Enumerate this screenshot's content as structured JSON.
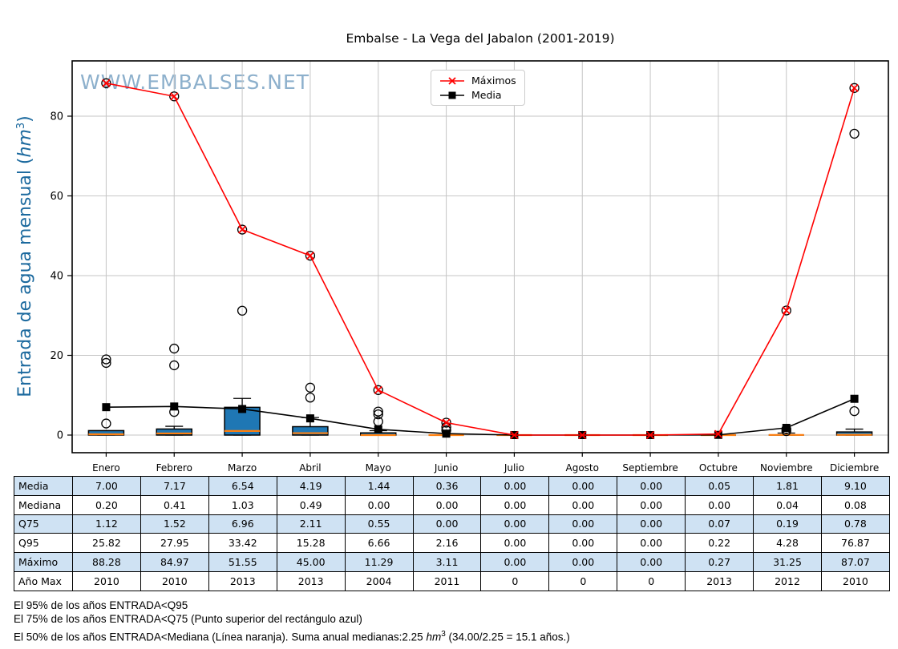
{
  "watermark": "WWW.EMBALSES.NET",
  "colors": {
    "watermark": "#7aa3c4",
    "ylabel": "#1b699e",
    "box_fill": "#1f77b4",
    "box_edge": "#000000",
    "median_line": "#ff7f0e",
    "maximos_line": "#ff0000",
    "media_line": "#000000",
    "grid": "#c6c6c6",
    "table_alt_row": "#cfe2f3",
    "legend_border": "#cccccc"
  },
  "y_axis_label": {
    "prefix": "Entrada de agua mensual (",
    "italic": "hm",
    "sup": "3",
    "suffix": ")"
  },
  "chart_data": {
    "type": "boxplot-with-lines",
    "title": "Embalse - La Vega del Jabalon (2001-2019)",
    "ylabel": "Entrada de agua mensual (hm3)",
    "categories": [
      "Enero",
      "Febrero",
      "Marzo",
      "Abril",
      "Mayo",
      "Junio",
      "Julio",
      "Agosto",
      "Septiembre",
      "Octubre",
      "Noviembre",
      "Diciembre"
    ],
    "yticks": [
      0,
      20,
      40,
      60,
      80
    ],
    "ylim": [
      -4.4,
      93.9
    ],
    "grid": true,
    "legend_position": "top-center",
    "series": [
      {
        "name": "Máximos",
        "type": "line",
        "color": "#ff0000",
        "marker": "x",
        "values": [
          88.28,
          84.97,
          51.55,
          45.0,
          11.29,
          3.11,
          0.0,
          0.0,
          0.0,
          0.27,
          31.25,
          87.07
        ]
      },
      {
        "name": "Media",
        "type": "line",
        "color": "#000000",
        "marker": "square",
        "values": [
          7.0,
          7.17,
          6.54,
          4.19,
          1.44,
          0.36,
          0.0,
          0.0,
          0.0,
          0.05,
          1.81,
          9.1
        ]
      }
    ],
    "boxplot": {
      "q1": [
        0,
        0,
        0,
        0,
        0,
        0,
        0,
        0,
        0,
        0,
        0,
        0
      ],
      "q3": [
        1.12,
        1.52,
        6.96,
        2.11,
        0.55,
        0.0,
        0.0,
        0.0,
        0.0,
        0.07,
        0.19,
        0.78
      ],
      "median": [
        0.2,
        0.41,
        1.03,
        0.49,
        0.0,
        0.0,
        0.0,
        0.0,
        0.0,
        0.0,
        0.04,
        0.08
      ],
      "whisker_high": [
        1.12,
        2.2,
        9.2,
        4.4,
        1.1,
        0.0,
        0.0,
        0.0,
        0.0,
        0.07,
        0.5,
        1.5
      ],
      "outliers": [
        [
          2.9,
          18.1,
          19.0,
          88.28
        ],
        [
          5.8,
          17.5,
          21.7,
          84.97
        ],
        [
          31.2,
          51.55
        ],
        [
          9.4,
          11.9,
          45.0
        ],
        [
          3.4,
          5.2,
          5.9,
          11.29
        ],
        [
          1.2,
          2.0,
          3.11
        ],
        [],
        [],
        [],
        [],
        [
          1.0,
          1.5,
          31.25
        ],
        [
          6.0,
          75.6,
          87.07
        ]
      ]
    }
  },
  "table": {
    "row_headers": [
      "Media",
      "Mediana",
      "Q75",
      "Q95",
      "Máximo",
      "Año Max"
    ],
    "columns": [
      "Enero",
      "Febrero",
      "Marzo",
      "Abril",
      "Mayo",
      "Junio",
      "Julio",
      "Agosto",
      "Septiembre",
      "Octubre",
      "Noviembre",
      "Diciembre"
    ],
    "rows": [
      [
        "7.00",
        "7.17",
        "6.54",
        "4.19",
        "1.44",
        "0.36",
        "0.00",
        "0.00",
        "0.00",
        "0.05",
        "1.81",
        "9.10"
      ],
      [
        "0.20",
        "0.41",
        "1.03",
        "0.49",
        "0.00",
        "0.00",
        "0.00",
        "0.00",
        "0.00",
        "0.00",
        "0.04",
        "0.08"
      ],
      [
        "1.12",
        "1.52",
        "6.96",
        "2.11",
        "0.55",
        "0.00",
        "0.00",
        "0.00",
        "0.00",
        "0.07",
        "0.19",
        "0.78"
      ],
      [
        "25.82",
        "27.95",
        "33.42",
        "15.28",
        "6.66",
        "2.16",
        "0.00",
        "0.00",
        "0.00",
        "0.22",
        "4.28",
        "76.87"
      ],
      [
        "88.28",
        "84.97",
        "51.55",
        "45.00",
        "11.29",
        "3.11",
        "0.00",
        "0.00",
        "0.00",
        "0.27",
        "31.25",
        "87.07"
      ],
      [
        "2010",
        "2010",
        "2013",
        "2013",
        "2004",
        "2011",
        "0",
        "0",
        "0",
        "2013",
        "2012",
        "2010"
      ]
    ]
  },
  "footnotes": {
    "line1": "El 95% de los años ENTRADA<Q95",
    "line2": "El 75% de los años ENTRADA<Q75 (Punto superior del rectángulo azul)",
    "line3_prefix": "El 50% de los años ENTRADA<Mediana (Línea naranja). Suma anual medianas:2.25 ",
    "line3_italic": "hm",
    "line3_sup": "3",
    "line3_suffix": " (34.00/2.25 = 15.1 años.)"
  }
}
